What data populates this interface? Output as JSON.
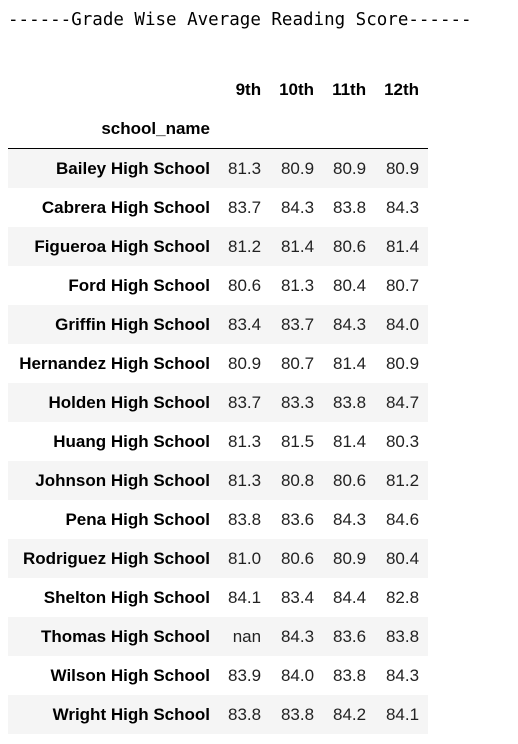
{
  "output": {
    "title": "------Grade Wise Average Reading Score------"
  },
  "table": {
    "columns": [
      "9th",
      "10th",
      "11th",
      "12th"
    ],
    "index_name": "school_name",
    "rows": [
      {
        "school": "Bailey High School",
        "values": [
          "81.3",
          "80.9",
          "80.9",
          "80.9"
        ]
      },
      {
        "school": "Cabrera High School",
        "values": [
          "83.7",
          "84.3",
          "83.8",
          "84.3"
        ]
      },
      {
        "school": "Figueroa High School",
        "values": [
          "81.2",
          "81.4",
          "80.6",
          "81.4"
        ]
      },
      {
        "school": "Ford High School",
        "values": [
          "80.6",
          "81.3",
          "80.4",
          "80.7"
        ]
      },
      {
        "school": "Griffin High School",
        "values": [
          "83.4",
          "83.7",
          "84.3",
          "84.0"
        ]
      },
      {
        "school": "Hernandez High School",
        "values": [
          "80.9",
          "80.7",
          "81.4",
          "80.9"
        ]
      },
      {
        "school": "Holden High School",
        "values": [
          "83.7",
          "83.3",
          "83.8",
          "84.7"
        ]
      },
      {
        "school": "Huang High School",
        "values": [
          "81.3",
          "81.5",
          "81.4",
          "80.3"
        ]
      },
      {
        "school": "Johnson High School",
        "values": [
          "81.3",
          "80.8",
          "80.6",
          "81.2"
        ]
      },
      {
        "school": "Pena High School",
        "values": [
          "83.8",
          "83.6",
          "84.3",
          "84.6"
        ]
      },
      {
        "school": "Rodriguez High School",
        "values": [
          "81.0",
          "80.6",
          "80.9",
          "80.4"
        ]
      },
      {
        "school": "Shelton High School",
        "values": [
          "84.1",
          "83.4",
          "84.4",
          "82.8"
        ]
      },
      {
        "school": "Thomas High School",
        "values": [
          "nan",
          "84.3",
          "83.6",
          "83.8"
        ]
      },
      {
        "school": "Wilson High School",
        "values": [
          "83.9",
          "84.0",
          "83.8",
          "84.3"
        ]
      },
      {
        "school": "Wright High School",
        "values": [
          "83.8",
          "83.8",
          "84.2",
          "84.1"
        ]
      }
    ]
  }
}
